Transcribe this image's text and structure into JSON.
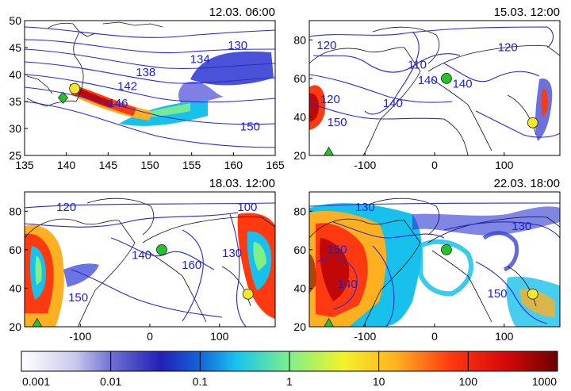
{
  "chart_data": [
    {
      "type": "heatmap",
      "title": "12.03. 06:00",
      "xlim": [
        135,
        165
      ],
      "ylim": [
        25,
        50
      ],
      "xticks": [
        135,
        140,
        145,
        150,
        155,
        160,
        165
      ],
      "yticks": [
        25,
        30,
        35,
        40,
        45,
        50
      ],
      "contour_labels": [
        {
          "text": "130",
          "lon": 160.5,
          "lat": 45.4
        },
        {
          "text": "134",
          "lon": 156,
          "lat": 42.8
        },
        {
          "text": "138",
          "lon": 149.5,
          "lat": 40.4
        },
        {
          "text": "142",
          "lon": 147.3,
          "lat": 37.8
        },
        {
          "text": "146",
          "lon": 146.2,
          "lat": 34.6
        },
        {
          "text": "150",
          "lon": 162,
          "lat": 30.3
        }
      ],
      "markers": [
        {
          "shape": "diamond",
          "color": "#22c42a",
          "lon": 139.6,
          "lat": 35.7
        },
        {
          "shape": "circle",
          "color": "#f5e82a",
          "lon": 141.0,
          "lat": 37.4
        }
      ]
    },
    {
      "type": "heatmap",
      "title": "15.03. 12:00",
      "xlim": [
        -180,
        180
      ],
      "ylim": [
        20,
        90
      ],
      "xticks": [
        -100,
        0,
        100
      ],
      "yticks": [
        20,
        40,
        60,
        80
      ],
      "contour_labels": [
        {
          "text": "120",
          "lon": -155,
          "lat": 77
        },
        {
          "text": "120",
          "lon": 105,
          "lat": 76
        },
        {
          "text": "110",
          "lon": -25,
          "lat": 67
        },
        {
          "text": "140",
          "lon": -10,
          "lat": 59
        },
        {
          "text": "140",
          "lon": 40,
          "lat": 57
        },
        {
          "text": "120",
          "lon": -150,
          "lat": 49
        },
        {
          "text": "140",
          "lon": -60,
          "lat": 47
        },
        {
          "text": "150",
          "lon": -140,
          "lat": 37
        }
      ],
      "markers": [
        {
          "shape": "circle",
          "color": "#22c42a",
          "lon": 17,
          "lat": 60
        },
        {
          "shape": "circle",
          "color": "#f5e82a",
          "lon": 141,
          "lat": 37
        },
        {
          "shape": "triangle",
          "color": "#22c42a",
          "lon": -152,
          "lat": 21
        }
      ]
    },
    {
      "type": "heatmap",
      "title": "18.03. 12:00",
      "xlim": [
        -180,
        180
      ],
      "ylim": [
        20,
        90
      ],
      "xticks": [
        -100,
        0,
        100
      ],
      "yticks": [
        20,
        40,
        60,
        80
      ],
      "contour_labels": [
        {
          "text": "120",
          "lon": -120,
          "lat": 82
        },
        {
          "text": "100",
          "lon": 140,
          "lat": 82
        },
        {
          "text": "140",
          "lon": -12,
          "lat": 57
        },
        {
          "text": "160",
          "lon": 60,
          "lat": 52
        },
        {
          "text": "130",
          "lon": 118,
          "lat": 58
        },
        {
          "text": "150",
          "lon": -103,
          "lat": 35
        }
      ],
      "markers": [
        {
          "shape": "circle",
          "color": "#22c42a",
          "lon": 17,
          "lat": 60
        },
        {
          "shape": "circle",
          "color": "#f5e82a",
          "lon": 141,
          "lat": 37
        },
        {
          "shape": "triangle",
          "color": "#22c42a",
          "lon": -162,
          "lat": 21
        }
      ]
    },
    {
      "type": "heatmap",
      "title": "22.03. 18:00",
      "xlim": [
        -180,
        180
      ],
      "ylim": [
        20,
        90
      ],
      "xticks": [
        -100,
        0,
        100
      ],
      "yticks": [
        20,
        40,
        60,
        80
      ],
      "contour_labels": [
        {
          "text": "130",
          "lon": -100,
          "lat": 82
        },
        {
          "text": "130",
          "lon": 125,
          "lat": 72
        },
        {
          "text": "150",
          "lon": -140,
          "lat": 60
        },
        {
          "text": "140",
          "lon": -125,
          "lat": 42
        },
        {
          "text": "150",
          "lon": 90,
          "lat": 37
        }
      ],
      "markers": [
        {
          "shape": "circle",
          "color": "#22c42a",
          "lon": 17,
          "lat": 60
        },
        {
          "shape": "circle",
          "color": "#f5e82a",
          "lon": 141,
          "lat": 37
        },
        {
          "shape": "triangle",
          "color": "#22c42a",
          "lon": -152,
          "lat": 21
        }
      ]
    },
    {
      "type": "colorbar",
      "scale": "log",
      "tick_labels": [
        "0.001",
        "0.01",
        "0.1",
        "1",
        "10",
        "100",
        "1000"
      ],
      "range": [
        0.001,
        1000
      ]
    }
  ]
}
